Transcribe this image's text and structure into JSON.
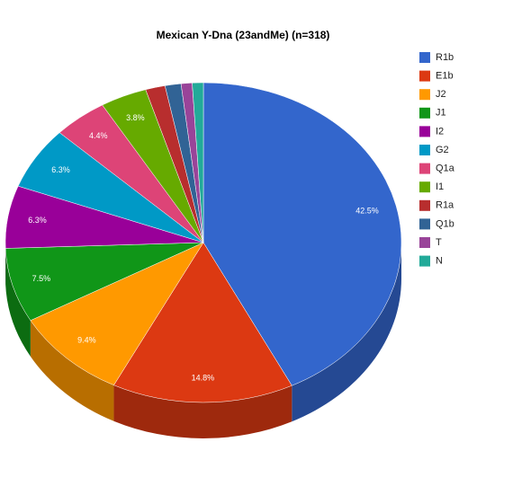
{
  "chart_data": {
    "type": "pie3d",
    "title": "Mexican Y-Dna (23andMe) (n=318)",
    "categories": [
      "R1b",
      "E1b",
      "J2",
      "J1",
      "I2",
      "G2",
      "Q1a",
      "I1",
      "R1a",
      "Q1b",
      "T",
      "N"
    ],
    "values": [
      42.5,
      14.8,
      9.4,
      7.5,
      6.3,
      6.3,
      4.4,
      3.8,
      1.6,
      1.3,
      0.9,
      0.9
    ],
    "value_labels": [
      "42.5%",
      "14.8%",
      "9.4%",
      "7.5%",
      "6.3%",
      "6.3%",
      "4.4%",
      "3.8%",
      null,
      null,
      null,
      null
    ],
    "colors": [
      "#3366cc",
      "#dc3912",
      "#ff9900",
      "#109618",
      "#990099",
      "#0099c6",
      "#dd4477",
      "#66aa00",
      "#b82e2e",
      "#316395",
      "#994499",
      "#22aa99"
    ],
    "legend": "right"
  }
}
